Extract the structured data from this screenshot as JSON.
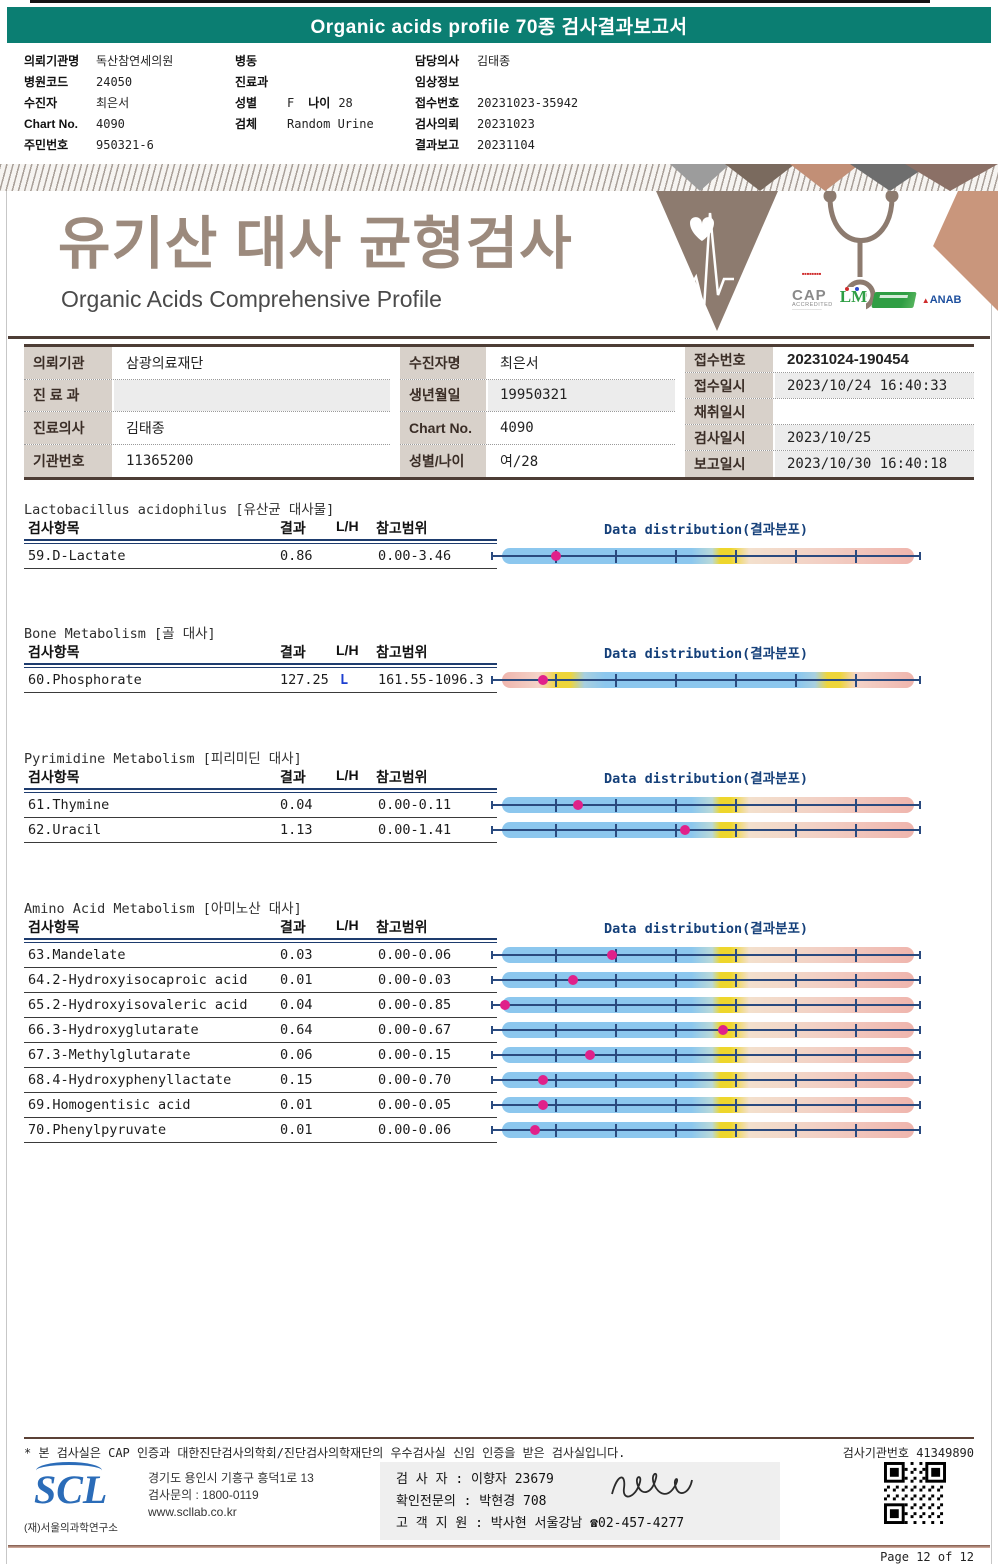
{
  "top_bar": {
    "title": "Organic acids profile 70종 검사결과보고서"
  },
  "info_block": {
    "left": [
      {
        "label": "의뢰기관명",
        "value": "독산참연세의원"
      },
      {
        "label": "병원코드",
        "value": "24050"
      },
      {
        "label": "수진자",
        "value": "최은서"
      },
      {
        "label": "Chart No.",
        "value": "4090"
      },
      {
        "label": "주민번호",
        "value": "950321-6"
      }
    ],
    "middle": [
      {
        "label": "병동",
        "value": ""
      },
      {
        "label": "진료과",
        "value": ""
      },
      {
        "label": "성별",
        "value": "F",
        "label2": "나이",
        "value2": "28"
      },
      {
        "label": "검체",
        "value": "Random Urine"
      }
    ],
    "right": [
      {
        "label": "담당의사",
        "value": "김태종"
      },
      {
        "label": "임상정보",
        "value": ""
      },
      {
        "label": "접수번호",
        "value": "20231023-35942"
      },
      {
        "label": "검사의뢰",
        "value": "20231023"
      },
      {
        "label": "결과보고",
        "value": "20231104"
      }
    ]
  },
  "banner": {
    "title_ko": "유기산 대사 균형검사",
    "title_en": "Organic Acids Comprehensive Profile",
    "logos": {
      "cap_line1": "CAP",
      "cap_line2": "ACCREDITED",
      "anab": "ANAB"
    }
  },
  "patient_table": {
    "groups": [
      {
        "rows": [
          {
            "label": "의뢰기관",
            "value": "삼광의료재단"
          },
          {
            "label": "진 료 과",
            "value": ""
          },
          {
            "label": "진료의사",
            "value": "김태종"
          },
          {
            "label": "기관번호",
            "value": "11365200"
          }
        ]
      },
      {
        "rows": [
          {
            "label": "수진자명",
            "value": "최은서"
          },
          {
            "label": "생년월일",
            "value": "19950321"
          },
          {
            "label": "Chart No.",
            "value": "4090"
          },
          {
            "label": "성별/나이",
            "value": "여/28"
          }
        ]
      },
      {
        "rows": [
          {
            "label": "접수번호",
            "value": "20231024-190454"
          },
          {
            "label": "접수일시",
            "value": "2023/10/24 16:40:33"
          },
          {
            "label": "채취일시",
            "value": ""
          },
          {
            "label": "검사일시",
            "value": "2023/10/25"
          },
          {
            "label": "보고일시",
            "value": "2023/10/30 16:40:18"
          }
        ]
      }
    ]
  },
  "results": {
    "columns": {
      "item": "검사항목",
      "result": "결과",
      "flag": "L/H",
      "range": "참고범위",
      "dist": "Data distribution(결과분포)"
    },
    "sections": [
      {
        "title": "Lactobacillus acidophilus [유산균 대사물]",
        "items": [
          {
            "name": "59.D-Lactate",
            "result": "0.86",
            "flag": "",
            "range": "0.00-3.46",
            "dot_pct": 15,
            "bar": "low"
          }
        ]
      },
      {
        "title": "Bone Metabolism [골 대사]",
        "items": [
          {
            "name": "60.Phosphorate",
            "result": "127.25",
            "flag": "L",
            "range": "161.55-1096.3",
            "dot_pct": 12,
            "bar": "mid"
          }
        ]
      },
      {
        "title": "Pyrimidine Metabolism [피리미딘 대사]",
        "items": [
          {
            "name": "61.Thymine",
            "result": "0.04",
            "flag": "",
            "range": "0.00-0.11",
            "dot_pct": 20,
            "bar": "low"
          },
          {
            "name": "62.Uracil",
            "result": "1.13",
            "flag": "",
            "range": "0.00-1.41",
            "dot_pct": 45,
            "bar": "low"
          }
        ]
      },
      {
        "title": "Amino Acid Metabolism [아미노산 대사]",
        "items": [
          {
            "name": "63.Mandelate",
            "result": "0.03",
            "flag": "",
            "range": "0.00-0.06",
            "dot_pct": 28,
            "bar": "low"
          },
          {
            "name": "64.2-Hydroxyisocaproic acid",
            "result": "0.01",
            "flag": "",
            "range": "0.00-0.03",
            "dot_pct": 19,
            "bar": "low"
          },
          {
            "name": "65.2-Hydroxyisovaleric acid",
            "result": "0.04",
            "flag": "",
            "range": "0.00-0.85",
            "dot_pct": 3,
            "bar": "low"
          },
          {
            "name": "66.3-Hydroxyglutarate",
            "result": "0.64",
            "flag": "",
            "range": "0.00-0.67",
            "dot_pct": 54,
            "bar": "low"
          },
          {
            "name": "67.3-Methylglutarate",
            "result": "0.06",
            "flag": "",
            "range": "0.00-0.15",
            "dot_pct": 23,
            "bar": "low"
          },
          {
            "name": "68.4-Hydroxyphenyllactate",
            "result": "0.15",
            "flag": "",
            "range": "0.00-0.70",
            "dot_pct": 12,
            "bar": "low"
          },
          {
            "name": "69.Homogentisic acid",
            "result": "0.01",
            "flag": "",
            "range": "0.00-0.05",
            "dot_pct": 12,
            "bar": "low"
          },
          {
            "name": "70.Phenylpyruvate",
            "result": "0.01",
            "flag": "",
            "range": "0.00-0.06",
            "dot_pct": 10,
            "bar": "low"
          }
        ]
      }
    ]
  },
  "footer": {
    "note": "* 본 검사실은 CAP 인증과 대한진단검사의학회/진단검사의학재단의 우수검사실 신임 인증을 받은 검사실입니다.",
    "lab_no": "검사기관번호 41349890",
    "scl": "SCL",
    "scl_sub": "(재)서울의과학연구소",
    "address": "경기도 용인시 기흥구 흥덕1로 13",
    "phone": "검사문의 : 1800-0119",
    "web": "www.scllab.co.kr",
    "staff1": "검 사 자 : 이향자 23679",
    "staff2": "확인전문의 : 박현경 708",
    "staff3": "고 객 지 원 : 박사현 서울강남 ☎02-457-4277",
    "page": "Page 12 of 12"
  },
  "colors": {
    "accent_teal": "#0b7e72",
    "navy": "#15407a",
    "bar_blue": "#8cc7ee",
    "bar_yellow": "#eed62c",
    "bar_pink": "#efb5ad",
    "dot_magenta": "#e0218a",
    "flag_blue": "#1d3fd0",
    "taupe": "#9c8a7d"
  }
}
